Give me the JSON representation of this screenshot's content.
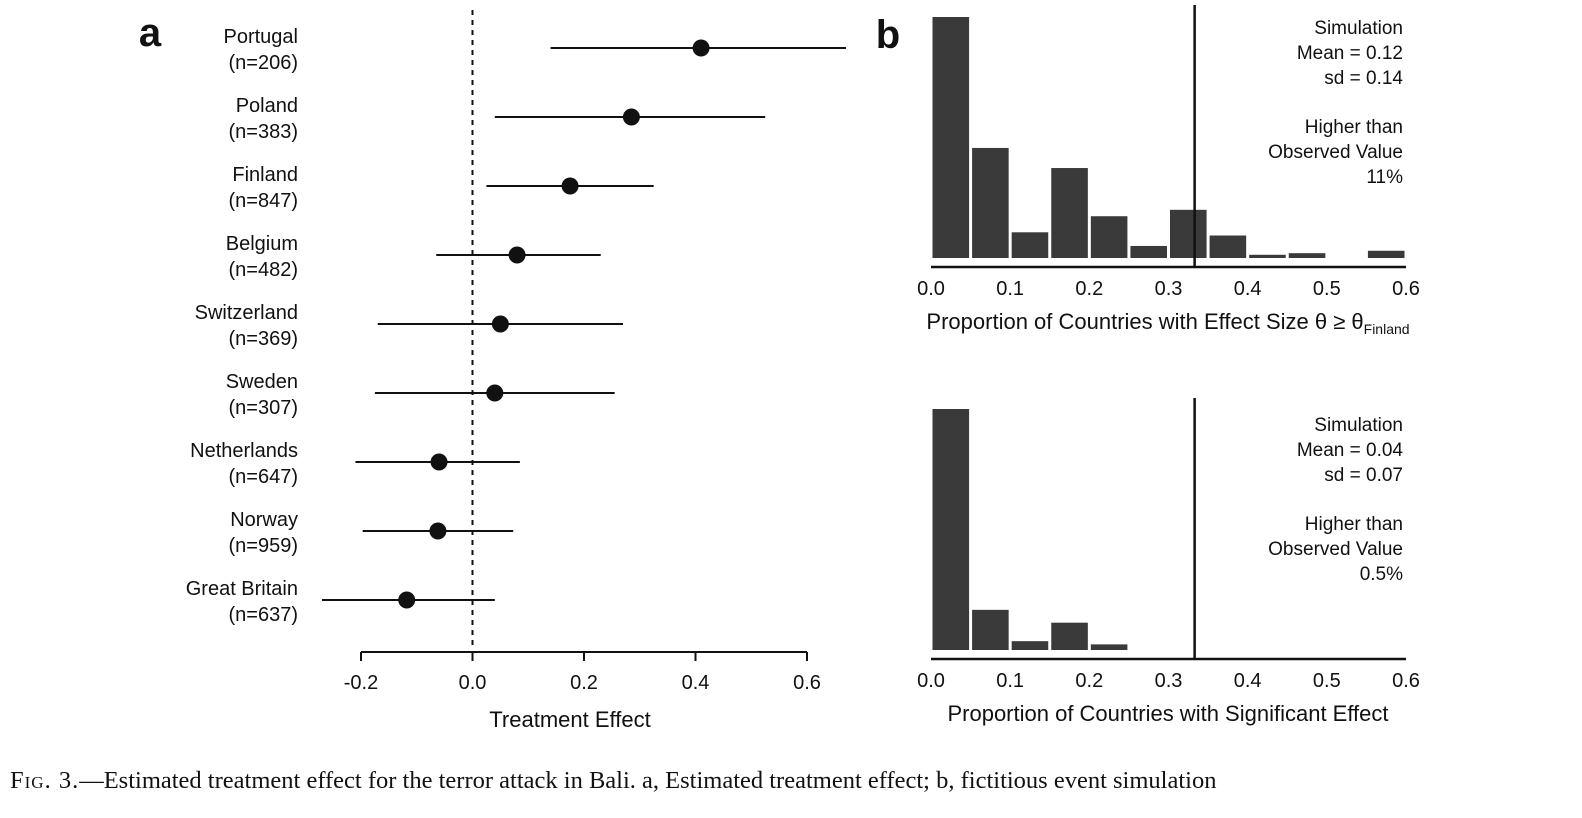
{
  "figure": {
    "caption_label": "Fig. 3.",
    "caption_text": "—Estimated treatment effect for the terror attack in Bali. a, Estimated treatment effect; b, fictitious event simulation"
  },
  "colors": {
    "ink": "#111111",
    "bar": "#3a3a3a"
  },
  "chart_data": [
    {
      "panel_label": "a",
      "type": "scatter",
      "xlabel": "Treatment Effect",
      "ylabel": "",
      "xlim": [
        -0.2,
        0.6
      ],
      "xticks": [
        "-0.2",
        "0.0",
        "0.2",
        "0.4",
        "0.6"
      ],
      "reference_line": {
        "x": 0.0,
        "style": "dashed"
      },
      "categories": [
        {
          "country": "Portugal",
          "n": "(n=206)",
          "estimate": 0.41,
          "ci_low": 0.14,
          "ci_high": 0.67
        },
        {
          "country": "Poland",
          "n": "(n=383)",
          "estimate": 0.285,
          "ci_low": 0.04,
          "ci_high": 0.525
        },
        {
          "country": "Finland",
          "n": "(n=847)",
          "estimate": 0.175,
          "ci_low": 0.025,
          "ci_high": 0.325
        },
        {
          "country": "Belgium",
          "n": "(n=482)",
          "estimate": 0.08,
          "ci_low": -0.065,
          "ci_high": 0.23
        },
        {
          "country": "Switzerland",
          "n": "(n=369)",
          "estimate": 0.05,
          "ci_low": -0.17,
          "ci_high": 0.27
        },
        {
          "country": "Sweden",
          "n": "(n=307)",
          "estimate": 0.04,
          "ci_low": -0.175,
          "ci_high": 0.255
        },
        {
          "country": "Netherlands",
          "n": "(n=647)",
          "estimate": -0.06,
          "ci_low": -0.21,
          "ci_high": 0.085
        },
        {
          "country": "Norway",
          "n": "(n=959)",
          "estimate": -0.062,
          "ci_low": -0.197,
          "ci_high": 0.073
        },
        {
          "country": "Great Britain",
          "n": "(n=637)",
          "estimate": -0.118,
          "ci_low": -0.27,
          "ci_high": 0.04
        }
      ]
    },
    {
      "panel_label": "b",
      "type": "bar",
      "xlabel": "Proportion of Countries with Effect Size θ ≥ θ",
      "xlabel_subscript": "Finland",
      "xlim": [
        0.0,
        0.6
      ],
      "xticks": [
        "0.0",
        "0.1",
        "0.2",
        "0.3",
        "0.4",
        "0.5",
        "0.6"
      ],
      "bin_width": 0.05,
      "bin_starts": [
        0.0,
        0.05,
        0.1,
        0.15,
        0.2,
        0.25,
        0.3,
        0.35,
        0.4,
        0.45,
        0.5,
        0.55
      ],
      "values": [
        0.3,
        0.137,
        0.032,
        0.112,
        0.052,
        0.015,
        0.06,
        0.028,
        0.004,
        0.006,
        0.0,
        0.009
      ],
      "observed_line": 0.333,
      "annotations": [
        "Simulation",
        "Mean = 0.12",
        "sd = 0.14",
        "Higher than",
        "Observed Value",
        "11%"
      ]
    },
    {
      "panel_label": "",
      "type": "bar",
      "xlabel": "Proportion of Countries with Significant Effect",
      "xlim": [
        0.0,
        0.6
      ],
      "xticks": [
        "0.0",
        "0.1",
        "0.2",
        "0.3",
        "0.4",
        "0.5",
        "0.6"
      ],
      "bin_width": 0.05,
      "bin_starts": [
        0.0,
        0.05,
        0.1,
        0.15,
        0.2,
        0.25,
        0.3,
        0.35,
        0.4,
        0.45,
        0.5,
        0.55
      ],
      "values": [
        0.3,
        0.05,
        0.011,
        0.034,
        0.007,
        0,
        0,
        0,
        0,
        0,
        0,
        0
      ],
      "observed_line": 0.333,
      "annotations": [
        "Simulation",
        "Mean = 0.04",
        "sd = 0.07",
        "Higher than",
        "Observed Value",
        "0.5%"
      ]
    }
  ]
}
